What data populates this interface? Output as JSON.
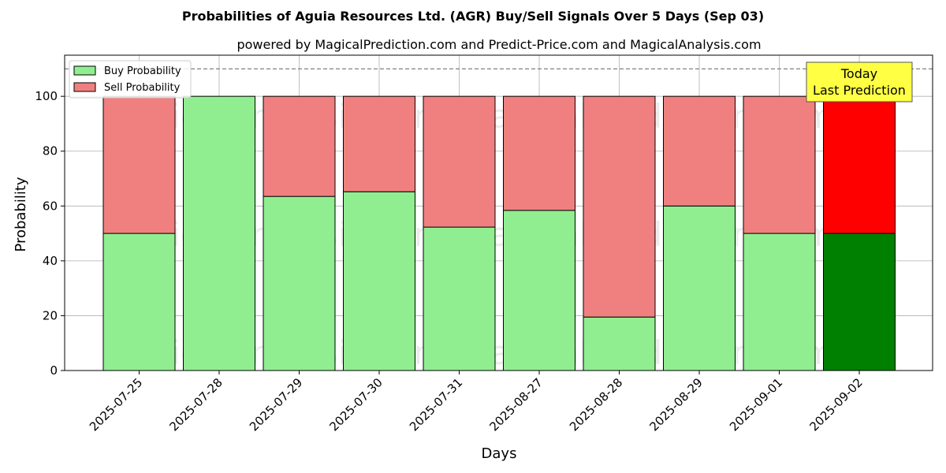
{
  "chart_data": {
    "type": "bar",
    "stacked": true,
    "title": "Probabilities of Aguia Resources Ltd. (AGR) Buy/Sell Signals Over 5 Days (Sep 03)",
    "subtitle": "powered by MagicalPrediction.com and Predict-Price.com and MagicalAnalysis.com",
    "xlabel": "Days",
    "ylabel": "Probability",
    "ylim": [
      0,
      115
    ],
    "yticks": [
      "0",
      "20",
      "40",
      "60",
      "80",
      "100"
    ],
    "grid": true,
    "legend_placement": "top-left",
    "reference_line": 110,
    "categories": [
      "2025-07-25",
      "2025-07-28",
      "2025-07-29",
      "2025-07-30",
      "2025-07-31",
      "2025-08-27",
      "2025-08-28",
      "2025-08-29",
      "2025-09-01",
      "2025-09-02"
    ],
    "series": [
      {
        "name": "Buy Probability",
        "values": [
          50,
          100,
          63.5,
          65.2,
          52.3,
          58.4,
          19.5,
          60,
          50,
          50
        ],
        "color": "#90ee90",
        "highlight_color": "#008000"
      },
      {
        "name": "Sell Probability",
        "values": [
          50,
          0,
          36.5,
          34.8,
          47.7,
          41.6,
          80.5,
          40,
          50,
          50
        ],
        "color": "#f08080",
        "highlight_color": "#ff0000"
      }
    ],
    "highlight_index": 9,
    "annotation": {
      "line1": "Today",
      "line2": "Last Prediction",
      "color": "#ffff44"
    },
    "watermarks": [
      "MagicalAnalysis.com",
      "MagicalPrediction.com",
      "MagicalAnalysis.com",
      "MagicalPrediction.com",
      "MagicalAnalysis.com",
      "MagicalPrediction.com"
    ]
  }
}
